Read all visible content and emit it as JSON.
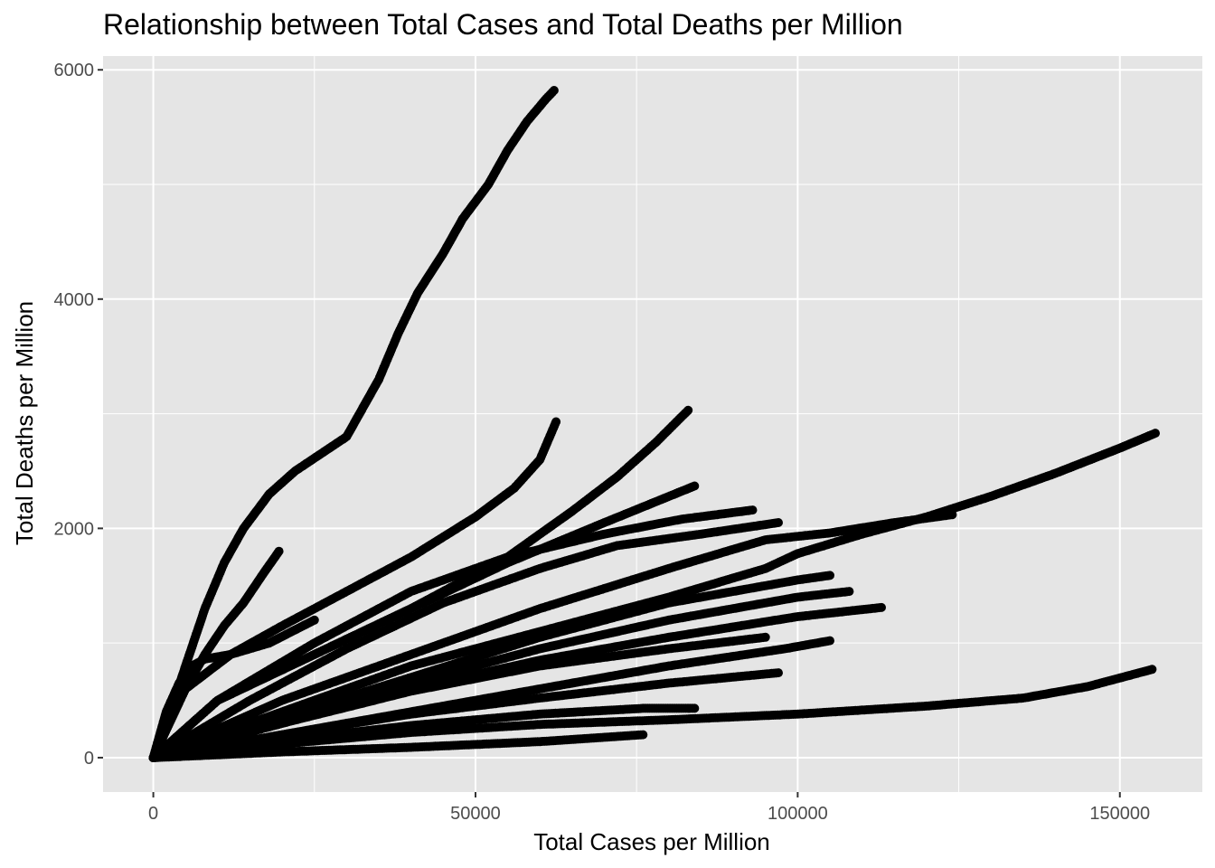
{
  "chart_data": {
    "type": "scatter",
    "title": "Relationship between Total Cases and Total Deaths per Million",
    "xlabel": "Total Cases per Million",
    "ylabel": "Total Deaths per Million",
    "xlim": [
      -7800,
      162800
    ],
    "ylim": [
      -300,
      6120
    ],
    "x_ticks": [
      0,
      50000,
      100000,
      150000
    ],
    "x_tick_labels": [
      "0",
      "50000",
      "100000",
      "150000"
    ],
    "y_ticks": [
      0,
      2000,
      4000,
      6000
    ],
    "y_tick_labels": [
      "0",
      "2000",
      "4000",
      "6000"
    ],
    "grid": true,
    "legend": "none",
    "point_color": "#000000",
    "panel_color": "#e5e5e5",
    "grid_color": "#ffffff",
    "series": [
      {
        "x": [
          0,
          2000,
          5000,
          8000,
          11000,
          14000,
          18000,
          22000,
          26000,
          30000,
          32000,
          35000,
          38000,
          41000,
          45000,
          48000,
          52000,
          55000,
          58000,
          61000,
          62200
        ],
        "y": [
          0,
          300,
          800,
          1300,
          1700,
          2000,
          2300,
          2500,
          2650,
          2800,
          3000,
          3300,
          3700,
          4050,
          4400,
          4700,
          5000,
          5300,
          5550,
          5750,
          5820
        ]
      },
      {
        "x": [
          0,
          3000,
          6000,
          8000,
          11000,
          14000,
          17000,
          19500
        ],
        "y": [
          0,
          400,
          700,
          900,
          1150,
          1350,
          1600,
          1800
        ]
      },
      {
        "x": [
          0,
          5000,
          12000,
          20000,
          30000,
          40000,
          50000,
          56000,
          60000,
          62500
        ],
        "y": [
          0,
          600,
          900,
          1150,
          1450,
          1750,
          2100,
          2350,
          2600,
          2930
        ]
      },
      {
        "x": [
          0,
          10000,
          25000,
          40000,
          55000,
          65000,
          72000,
          78000,
          83000
        ],
        "y": [
          0,
          500,
          900,
          1300,
          1750,
          2150,
          2450,
          2750,
          3030
        ]
      },
      {
        "x": [
          0,
          10000,
          25000,
          40000,
          55000,
          70000,
          84000
        ],
        "y": [
          0,
          500,
          900,
          1300,
          1700,
          2050,
          2370
        ]
      },
      {
        "x": [
          0,
          10000,
          25000,
          40000,
          55000,
          70000,
          82000,
          93000
        ],
        "y": [
          0,
          500,
          1000,
          1450,
          1750,
          1950,
          2080,
          2160
        ]
      },
      {
        "x": [
          0,
          15000,
          30000,
          45000,
          60000,
          72000,
          85000,
          97000
        ],
        "y": [
          0,
          500,
          950,
          1350,
          1650,
          1850,
          1950,
          2050
        ]
      },
      {
        "x": [
          0,
          20000,
          40000,
          60000,
          80000,
          95000,
          105000,
          115000,
          124000
        ],
        "y": [
          0,
          500,
          900,
          1300,
          1650,
          1900,
          1960,
          2050,
          2120
        ]
      },
      {
        "x": [
          0,
          20000,
          40000,
          60000,
          80000,
          95000,
          100000,
          110000,
          120000,
          130000,
          140000,
          150000,
          155500
        ],
        "y": [
          0,
          400,
          800,
          1100,
          1400,
          1650,
          1780,
          1950,
          2100,
          2280,
          2480,
          2700,
          2830
        ]
      },
      {
        "x": [
          0,
          20000,
          40000,
          60000,
          80000,
          100000,
          105000
        ],
        "y": [
          0,
          350,
          700,
          1050,
          1350,
          1550,
          1590
        ]
      },
      {
        "x": [
          0,
          20000,
          40000,
          60000,
          80000,
          100000,
          108000
        ],
        "y": [
          0,
          300,
          650,
          950,
          1200,
          1400,
          1450
        ]
      },
      {
        "x": [
          0,
          20000,
          40000,
          60000,
          80000,
          100000,
          113000
        ],
        "y": [
          0,
          300,
          600,
          850,
          1050,
          1230,
          1310
        ]
      },
      {
        "x": [
          0,
          20000,
          40000,
          60000,
          80000,
          95000
        ],
        "y": [
          0,
          300,
          580,
          800,
          950,
          1050
        ]
      },
      {
        "x": [
          0,
          20000,
          40000,
          60000,
          80000,
          98000,
          105000
        ],
        "y": [
          0,
          200,
          400,
          600,
          800,
          950,
          1020
        ]
      },
      {
        "x": [
          0,
          20000,
          40000,
          60000,
          80000,
          97000
        ],
        "y": [
          0,
          200,
          380,
          520,
          650,
          740
        ]
      },
      {
        "x": [
          0,
          20000,
          40000,
          60000,
          76000,
          84000
        ],
        "y": [
          0,
          150,
          280,
          380,
          430,
          430
        ]
      },
      {
        "x": [
          0,
          20000,
          40000,
          60000,
          80000,
          100000,
          120000,
          135000,
          145000,
          155000
        ],
        "y": [
          0,
          120,
          220,
          290,
          330,
          380,
          450,
          520,
          620,
          770
        ]
      },
      {
        "x": [
          0,
          20000,
          40000,
          60000,
          76000
        ],
        "y": [
          0,
          50,
          90,
          140,
          200
        ]
      },
      {
        "x": [
          0,
          2000,
          4000,
          6000,
          8000,
          12000,
          18000,
          25000
        ],
        "y": [
          0,
          400,
          650,
          800,
          860,
          900,
          1000,
          1200
        ]
      }
    ]
  }
}
